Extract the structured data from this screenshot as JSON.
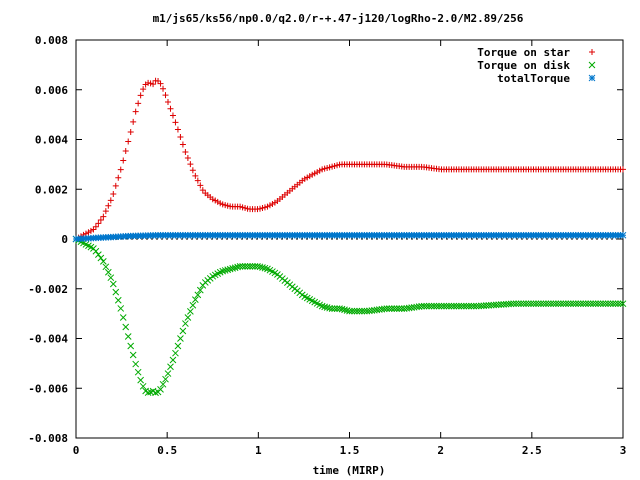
{
  "chart_data": {
    "type": "scatter",
    "title": "m1/js65/ks56/np0.0/q2.0/r-+.47-j120/logRho-2.0/M2.89/256",
    "xlabel": "time (MIRP)",
    "ylabel": "",
    "xlim": [
      0,
      3
    ],
    "ylim": [
      -0.008,
      0.008
    ],
    "xticks": [
      "0",
      "0.5",
      "1",
      "1.5",
      "2",
      "2.5",
      "3"
    ],
    "yticks": [
      "-0.008",
      "-0.006",
      "-0.004",
      "-0.002",
      "0",
      "0.002",
      "0.004",
      "0.006",
      "0.008"
    ],
    "legend_position": "top-right",
    "series": [
      {
        "name": "Torque on star",
        "marker": "plus",
        "color": "#dd0000",
        "x": [
          0,
          0.05,
          0.1,
          0.15,
          0.2,
          0.25,
          0.3,
          0.33,
          0.36,
          0.38,
          0.4,
          0.42,
          0.44,
          0.46,
          0.48,
          0.5,
          0.55,
          0.6,
          0.65,
          0.7,
          0.75,
          0.8,
          0.85,
          0.9,
          0.95,
          1.0,
          1.05,
          1.1,
          1.15,
          1.2,
          1.25,
          1.3,
          1.35,
          1.4,
          1.45,
          1.5,
          1.55,
          1.6,
          1.7,
          1.8,
          1.9,
          2.0,
          2.2,
          2.4,
          2.6,
          2.8,
          3.0
        ],
        "y": [
          0,
          0.0002,
          0.0004,
          0.0009,
          0.0017,
          0.0029,
          0.0043,
          0.0052,
          0.0059,
          0.0062,
          0.0063,
          0.0062,
          0.0064,
          0.0063,
          0.006,
          0.0056,
          0.0046,
          0.0035,
          0.0026,
          0.0019,
          0.0016,
          0.0014,
          0.0013,
          0.0013,
          0.0012,
          0.0012,
          0.0013,
          0.0015,
          0.0018,
          0.0021,
          0.0024,
          0.0026,
          0.0028,
          0.0029,
          0.003,
          0.003,
          0.003,
          0.003,
          0.003,
          0.0029,
          0.0029,
          0.0028,
          0.0028,
          0.0028,
          0.0028,
          0.0028,
          0.0028
        ]
      },
      {
        "name": "Torque on disk",
        "marker": "cross",
        "color": "#00aa00",
        "x": [
          0,
          0.05,
          0.1,
          0.15,
          0.2,
          0.25,
          0.3,
          0.33,
          0.36,
          0.38,
          0.4,
          0.42,
          0.44,
          0.46,
          0.48,
          0.5,
          0.55,
          0.6,
          0.65,
          0.7,
          0.75,
          0.8,
          0.85,
          0.9,
          0.95,
          1.0,
          1.05,
          1.1,
          1.15,
          1.2,
          1.25,
          1.3,
          1.35,
          1.4,
          1.45,
          1.5,
          1.55,
          1.6,
          1.7,
          1.8,
          1.9,
          2.0,
          2.2,
          2.4,
          2.6,
          2.8,
          3.0
        ],
        "y": [
          0,
          -0.0002,
          -0.0004,
          -0.0009,
          -0.0017,
          -0.0029,
          -0.0043,
          -0.0051,
          -0.0058,
          -0.0061,
          -0.0062,
          -0.0061,
          -0.0062,
          -0.0061,
          -0.0058,
          -0.0055,
          -0.0045,
          -0.0034,
          -0.0025,
          -0.0018,
          -0.0015,
          -0.0013,
          -0.0012,
          -0.0011,
          -0.0011,
          -0.0011,
          -0.0012,
          -0.0014,
          -0.0017,
          -0.002,
          -0.0023,
          -0.0025,
          -0.0027,
          -0.0028,
          -0.0028,
          -0.0029,
          -0.0029,
          -0.0029,
          -0.0028,
          -0.0028,
          -0.0027,
          -0.0027,
          -0.0027,
          -0.0026,
          -0.0026,
          -0.0026,
          -0.0026
        ]
      },
      {
        "name": "totalTorque",
        "marker": "star",
        "color": "#0077cc",
        "x": [
          0,
          0.05,
          0.1,
          0.15,
          0.2,
          0.25,
          0.3,
          0.35,
          0.4,
          0.45,
          0.5,
          0.6,
          0.7,
          0.8,
          0.9,
          1.0,
          1.1,
          1.2,
          1.3,
          1.4,
          1.5,
          1.6,
          1.7,
          1.8,
          1.9,
          2.0,
          2.1,
          2.2,
          2.3,
          2.4,
          2.5,
          2.6,
          2.7,
          2.8,
          2.9,
          3.0
        ],
        "y": [
          0,
          2e-05,
          4e-05,
          6e-05,
          8e-05,
          0.0001,
          0.00012,
          0.00013,
          0.00014,
          0.00015,
          0.00015,
          0.00015,
          0.00015,
          0.00015,
          0.00015,
          0.00015,
          0.00015,
          0.00015,
          0.00015,
          0.00015,
          0.00015,
          0.00015,
          0.00015,
          0.00015,
          0.00015,
          0.00015,
          0.00015,
          0.00015,
          0.00015,
          0.00015,
          0.00015,
          0.00015,
          0.00015,
          0.00015,
          0.00015,
          0.00015
        ]
      }
    ]
  }
}
